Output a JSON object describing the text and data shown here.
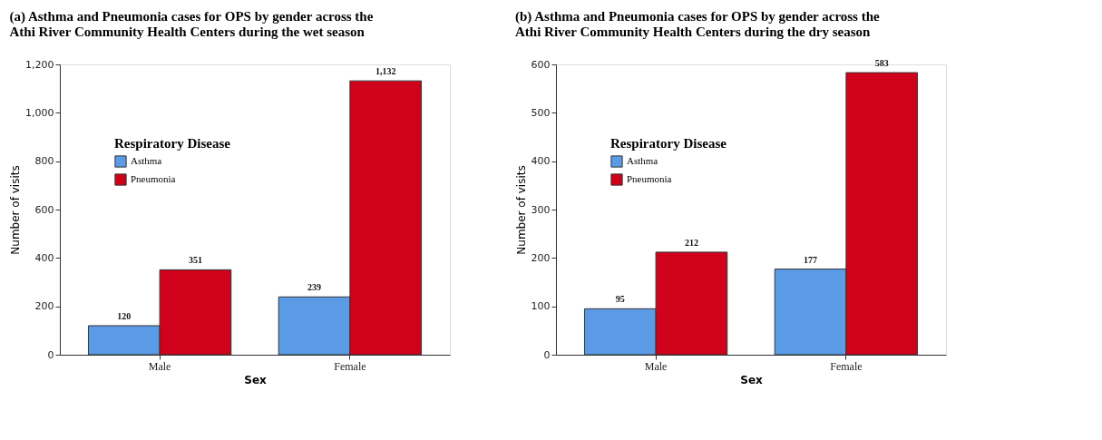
{
  "chart_data": [
    {
      "type": "bar",
      "title": [
        "(a) Asthma and Pneumonia cases for OPS by gender across the",
        "Athi River Community Health Centers during the wet season"
      ],
      "xlabel": "Sex",
      "ylabel": "Number of visits",
      "legend_title": "Respiratory Disease",
      "legend": "left",
      "grid": false,
      "categories": [
        "Male",
        "Female"
      ],
      "series": [
        {
          "name": "Asthma",
          "color": "#5b9be6",
          "values": [
            120,
            239
          ],
          "value_labels": [
            "120",
            "239"
          ]
        },
        {
          "name": "Pneumonia",
          "color": "#d0021b",
          "values": [
            351,
            1132
          ],
          "value_labels": [
            "351",
            "1,132"
          ]
        }
      ],
      "ylim": [
        0,
        1200
      ],
      "yticks": [
        0,
        200,
        400,
        600,
        800,
        {
          "value": 1000,
          "label": "1,000"
        },
        {
          "value": 1200,
          "label": "1,200"
        }
      ]
    },
    {
      "type": "bar",
      "title": [
        "(b) Asthma and Pneumonia cases for OPS by gender across the",
        "Athi River Community Health Centers during the dry season"
      ],
      "xlabel": "Sex",
      "ylabel": "Number of visits",
      "legend_title": "Respiratory Disease",
      "legend": "left",
      "grid": false,
      "categories": [
        "Male",
        "Female"
      ],
      "series": [
        {
          "name": "Asthma",
          "color": "#5b9be6",
          "values": [
            95,
            177
          ],
          "value_labels": [
            "95",
            "177"
          ]
        },
        {
          "name": "Pneumonia",
          "color": "#d0021b",
          "values": [
            212,
            583
          ],
          "value_labels": [
            "212",
            "583"
          ]
        }
      ],
      "ylim": [
        0,
        600
      ],
      "yticks": [
        0,
        100,
        200,
        300,
        400,
        500,
        600
      ]
    }
  ]
}
